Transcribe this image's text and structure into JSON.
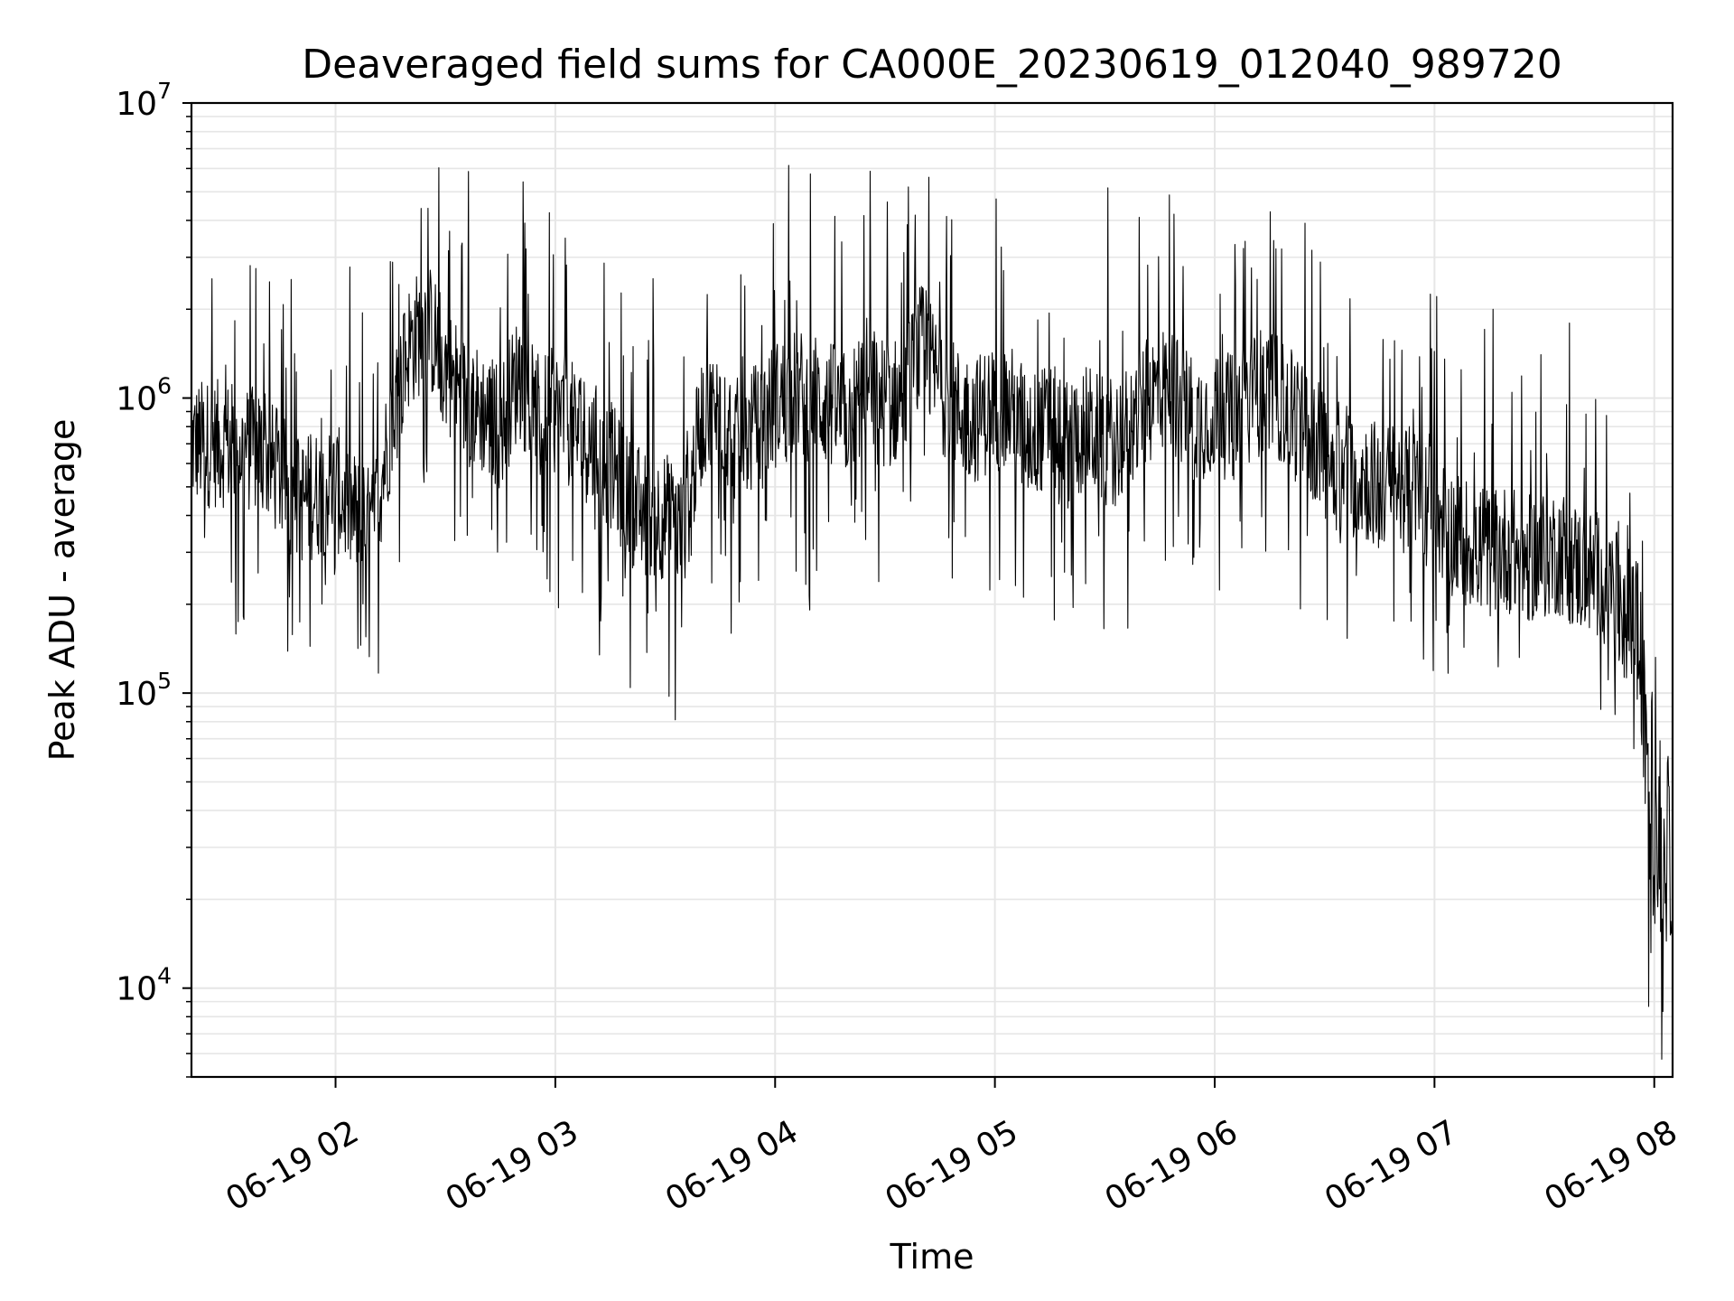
{
  "chart_data": {
    "type": "line",
    "title": "Deaveraged field sums for CA000E_20230619_012040_989720",
    "xlabel": "Time",
    "ylabel": "Peak ADU - average",
    "yscale": "log",
    "ylim": [
      5000,
      10000000
    ],
    "xlim": [
      "2023-06-19 01:20:40",
      "2023-06-19 08:05:00"
    ],
    "grid": true,
    "x_ticks": [
      {
        "label": "06-19 02",
        "value": "2023-06-19 02:00"
      },
      {
        "label": "06-19 03",
        "value": "2023-06-19 03:00"
      },
      {
        "label": "06-19 04",
        "value": "2023-06-19 04:00"
      },
      {
        "label": "06-19 05",
        "value": "2023-06-19 05:00"
      },
      {
        "label": "06-19 06",
        "value": "2023-06-19 06:00"
      },
      {
        "label": "06-19 07",
        "value": "2023-06-19 07:00"
      },
      {
        "label": "06-19 08",
        "value": "2023-06-19 08:00"
      }
    ],
    "y_ticks": [
      {
        "base": "10",
        "exp": "4",
        "value": 10000
      },
      {
        "base": "10",
        "exp": "5",
        "value": 100000
      },
      {
        "base": "10",
        "exp": "6",
        "value": 1000000
      },
      {
        "base": "10",
        "exp": "7",
        "value": 10000000
      }
    ],
    "series": [
      {
        "color": "#000000",
        "x": [
          "01:20",
          "01:30",
          "01:40",
          "01:50",
          "02:00",
          "02:05",
          "02:10",
          "02:15",
          "02:20",
          "02:25",
          "02:30",
          "02:35",
          "02:40",
          "02:45",
          "02:50",
          "02:55",
          "03:00",
          "03:05",
          "03:10",
          "03:15",
          "03:20",
          "03:25",
          "03:30",
          "03:35",
          "03:40",
          "03:45",
          "03:50",
          "03:55",
          "04:00",
          "04:05",
          "04:10",
          "04:15",
          "04:20",
          "04:25",
          "04:30",
          "04:35",
          "04:40",
          "04:45",
          "04:50",
          "04:55",
          "05:00",
          "05:05",
          "05:10",
          "05:15",
          "05:20",
          "05:25",
          "05:30",
          "05:35",
          "05:40",
          "05:45",
          "05:50",
          "05:55",
          "06:00",
          "06:05",
          "06:10",
          "06:15",
          "06:20",
          "06:25",
          "06:30",
          "06:35",
          "06:40",
          "06:45",
          "06:50",
          "06:55",
          "07:00",
          "07:05",
          "07:10",
          "07:15",
          "07:20",
          "07:25",
          "07:30",
          "07:35",
          "07:40",
          "07:45",
          "07:50",
          "07:55",
          "08:00",
          "08:05"
        ],
        "values": [
          700000,
          700000,
          650000,
          450000,
          500000,
          400000,
          350000,
          800000,
          1500000,
          1800000,
          1300000,
          1000000,
          900000,
          800000,
          1200000,
          850000,
          900000,
          800000,
          700000,
          600000,
          450000,
          400000,
          400000,
          350000,
          850000,
          900000,
          700000,
          800000,
          950000,
          1050000,
          1000000,
          950000,
          850000,
          1150000,
          950000,
          1000000,
          1500000,
          1100000,
          900000,
          850000,
          950000,
          900000,
          750000,
          800000,
          700000,
          800000,
          700000,
          750000,
          900000,
          1100000,
          1000000,
          850000,
          900000,
          850000,
          1000000,
          1100000,
          900000,
          800000,
          650000,
          550000,
          550000,
          500000,
          500000,
          480000,
          420000,
          350000,
          320000,
          300000,
          310000,
          280000,
          300000,
          300000,
          260000,
          250000,
          210000,
          190000,
          30000,
          25000
        ]
      }
    ]
  }
}
